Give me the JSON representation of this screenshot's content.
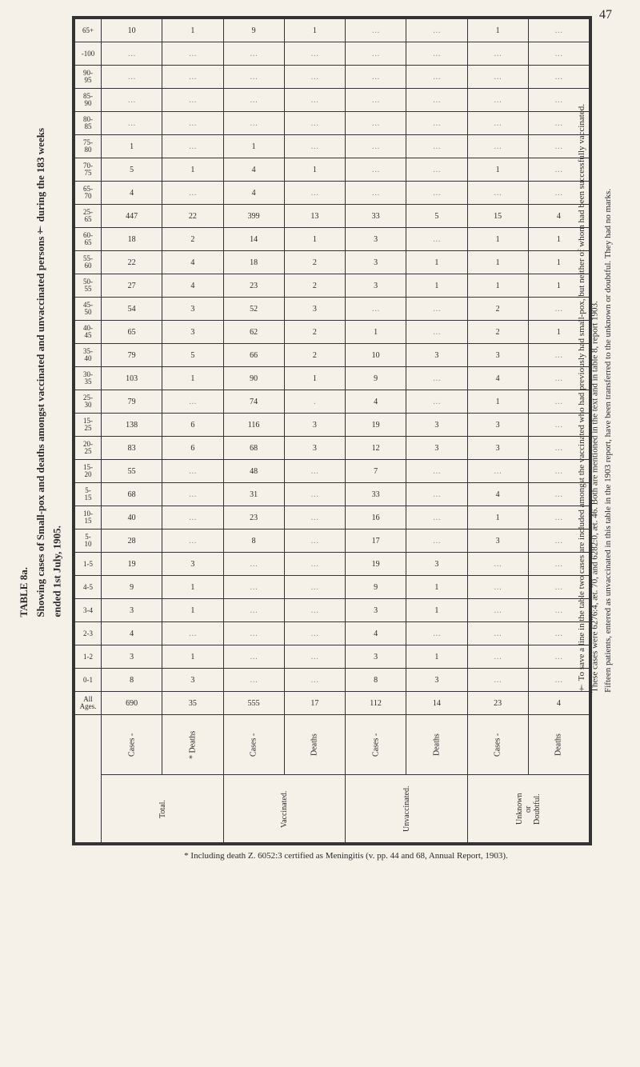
{
  "page_number": "47",
  "side_caption": {
    "line1": "TABLE 8a.",
    "line2": "Showing cases of Small-pox and deaths amongst vaccinated and unvaccinated persons† during the 183 weeks",
    "line3": "ended 1st July, 1905."
  },
  "age_bands": [
    "65+",
    "-100",
    "90-\n95",
    "85-\n90",
    "80-\n85",
    "75-\n80",
    "70-\n75",
    "65-\n70",
    "25-\n65",
    "60-\n65",
    "55-\n60",
    "50-\n55",
    "45-\n50",
    "40-\n45",
    "35-\n40",
    "30-\n35",
    "25-\n30",
    "15-\n25",
    "20-\n25",
    "15-\n20",
    "5-\n15",
    "10-\n15",
    "5-\n10",
    "1-5",
    "4-5",
    "3-4",
    "2-3",
    "1-2",
    "0-1",
    "All\nAges."
  ],
  "groups": [
    "Total.",
    "Vaccinated.",
    "Unvaccinated.",
    "Unknown\nor\nDoubtful."
  ],
  "subheaders": [
    "Cases -",
    "* Deaths",
    "Cases -",
    "Deaths",
    "Cases -",
    "Deaths",
    "Cases -",
    "Deaths"
  ],
  "rows": [
    [
      "10",
      "1",
      "9",
      "1",
      "…",
      "…",
      "1",
      "…"
    ],
    [
      "…",
      "…",
      "…",
      "…",
      "…",
      "…",
      "…",
      "…"
    ],
    [
      "…",
      "…",
      "…",
      "…",
      "…",
      "…",
      "…",
      "…"
    ],
    [
      "…",
      "…",
      "…",
      "…",
      "…",
      "…",
      "…",
      "…"
    ],
    [
      "…",
      "…",
      "…",
      "…",
      "…",
      "…",
      "…",
      "…"
    ],
    [
      "1",
      "…",
      "1",
      "…",
      "…",
      "…",
      "…",
      "…"
    ],
    [
      "5",
      "1",
      "4",
      "1",
      "…",
      "…",
      "1",
      "…"
    ],
    [
      "4",
      "…",
      "4",
      "…",
      "…",
      "…",
      "…",
      "…"
    ],
    [
      "447",
      "22",
      "399",
      "13",
      "33",
      "5",
      "15",
      "4"
    ],
    [
      "18",
      "2",
      "14",
      "1",
      "3",
      "…",
      "1",
      "1"
    ],
    [
      "22",
      "4",
      "18",
      "2",
      "3",
      "1",
      "1",
      "1"
    ],
    [
      "27",
      "4",
      "23",
      "2",
      "3",
      "1",
      "1",
      "1"
    ],
    [
      "54",
      "3",
      "52",
      "3",
      "…",
      "…",
      "2",
      "…"
    ],
    [
      "65",
      "3",
      "62",
      "2",
      "1",
      "…",
      "2",
      "1"
    ],
    [
      "79",
      "5",
      "66",
      "2",
      "10",
      "3",
      "3",
      "…"
    ],
    [
      "103",
      "1",
      "90",
      "1",
      "9",
      "…",
      "4",
      "…"
    ],
    [
      "79",
      "…",
      "74",
      ".",
      "4",
      "…",
      "1",
      "…"
    ],
    [
      "138",
      "6",
      "116",
      "3",
      "19",
      "3",
      "3",
      "…"
    ],
    [
      "83",
      "6",
      "68",
      "3",
      "12",
      "3",
      "3",
      "…"
    ],
    [
      "55",
      "…",
      "48",
      "…",
      "7",
      "…",
      "…",
      "…"
    ],
    [
      "68",
      "…",
      "31",
      "…",
      "33",
      "…",
      "4",
      "…"
    ],
    [
      "40",
      "…",
      "23",
      "…",
      "16",
      "…",
      "1",
      "…"
    ],
    [
      "28",
      "…",
      "8",
      "…",
      "17",
      "…",
      "3",
      "…"
    ],
    [
      "19",
      "3",
      "…",
      "…",
      "19",
      "3",
      "…",
      "…"
    ],
    [
      "9",
      "1",
      "…",
      "…",
      "9",
      "1",
      "…",
      "…"
    ],
    [
      "3",
      "1",
      "…",
      "…",
      "3",
      "1",
      "…",
      "…"
    ],
    [
      "4",
      "…",
      "…",
      "…",
      "4",
      "…",
      "…",
      "…"
    ],
    [
      "3",
      "1",
      "…",
      "…",
      "3",
      "1",
      "…",
      "…"
    ],
    [
      "8",
      "3",
      "…",
      "…",
      "8",
      "3",
      "…",
      "…"
    ],
    [
      "690",
      "35",
      "555",
      "17",
      "112",
      "14",
      "23",
      "4"
    ]
  ],
  "footnote_star": "* Including death Z. 6052:3 certified as Meningitis (v. pp. 44 and 68, Annual Report, 1903).",
  "footnote_dagger_l1": "† To save a line in the table two cases are included amongst the vaccinated who had previously had small-pox, but neither of whom had been successfully vaccinated.",
  "footnote_dagger_l2": "These cases were 6276:4, æt. 70, and 6282:0, æt. 46.  Both are mentioned in the text and in table 8, report 1903.",
  "footnote_dagger_l3": "Fifteen patients, entered as unvaccinated in this table in the 1903 report, have been transferred to the unknown or doubtful.  They had no marks.",
  "colors": {
    "bg": "#f5f0e8",
    "ink": "#2a2a2a",
    "border": "#333333"
  }
}
